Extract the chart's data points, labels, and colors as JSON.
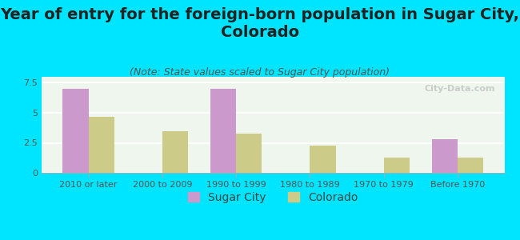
{
  "title": "Year of entry for the foreign-born population in Sugar City,\nColorado",
  "subtitle": "(Note: State values scaled to Sugar City population)",
  "categories": [
    "2010 or later",
    "2000 to 2009",
    "1990 to 1999",
    "1980 to 1989",
    "1970 to 1979",
    "Before 1970"
  ],
  "sugar_city_values": [
    7.0,
    0,
    7.0,
    0,
    0,
    2.8
  ],
  "colorado_values": [
    4.7,
    3.5,
    3.3,
    2.3,
    1.3,
    1.3
  ],
  "sugar_city_color": "#cc99cc",
  "colorado_color": "#cccc88",
  "background_color": "#00e5ff",
  "plot_bg_color": "#eef6ee",
  "ylim": [
    0,
    8.0
  ],
  "yticks": [
    0,
    2.5,
    5,
    7.5
  ],
  "bar_width": 0.35,
  "title_fontsize": 14,
  "subtitle_fontsize": 9,
  "tick_fontsize": 8,
  "legend_fontsize": 10,
  "watermark": "City-Data.com"
}
